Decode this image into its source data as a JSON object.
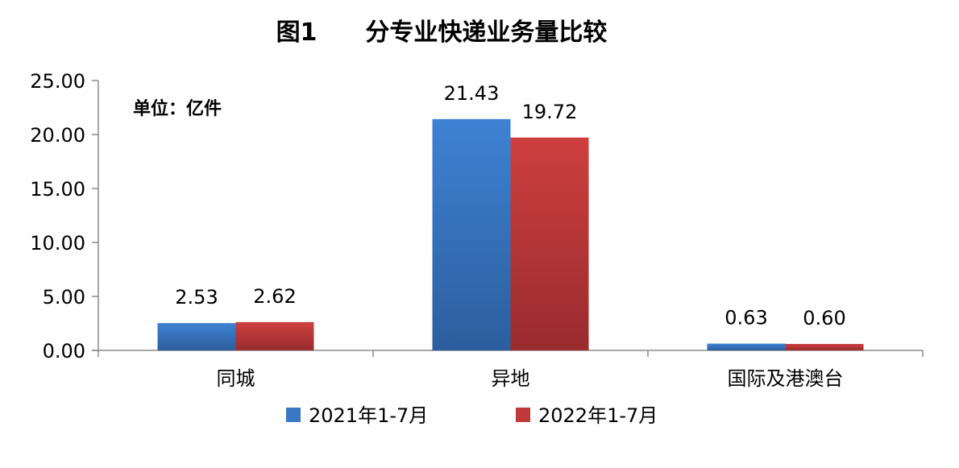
{
  "chart_data": {
    "type": "bar",
    "title": "图1　　分专业快递业务量比较",
    "unit_label": "单位：亿件",
    "categories": [
      "同城",
      "异地",
      "国际及港澳台"
    ],
    "series": [
      {
        "name": "2021年1-7月",
        "values": [
          2.53,
          21.43,
          0.63
        ],
        "labels": [
          "2.53",
          "21.43",
          "0.63"
        ],
        "color": "#3A78C3"
      },
      {
        "name": "2022年1-7月",
        "values": [
          2.62,
          19.72,
          0.6
        ],
        "labels": [
          "2.62",
          "19.72",
          "0.60"
        ],
        "color": "#C0383A"
      }
    ],
    "y_ticks": [
      "0.00",
      "5.00",
      "10.00",
      "15.00",
      "20.00",
      "25.00"
    ],
    "ylim": [
      0,
      25
    ],
    "grid": false,
    "legend_position": "bottom"
  }
}
